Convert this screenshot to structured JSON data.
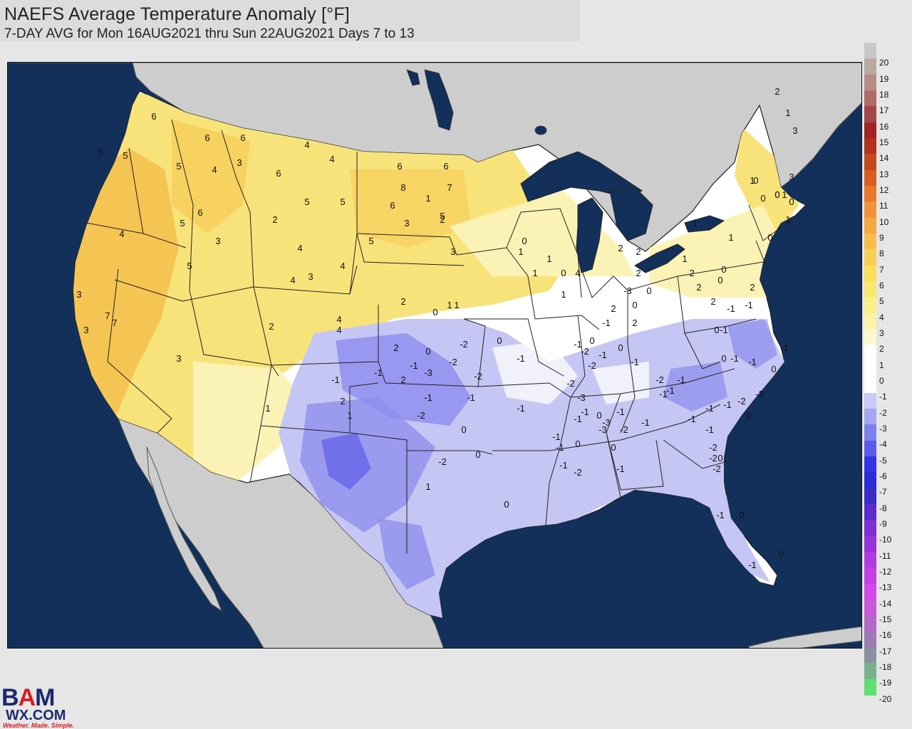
{
  "header": {
    "title": "NAEFS Average Temperature Anomaly [°F]",
    "subtitle": "7-DAY AVG for Mon 16AUG2021 thru Sun 22AUG2021 Days 7 to 13"
  },
  "legend": {
    "unit": "°F",
    "items": [
      {
        "label": "20",
        "color": "#c8c8c8"
      },
      {
        "label": "19",
        "color": "#b9a9a3"
      },
      {
        "label": "18",
        "color": "#b78c88"
      },
      {
        "label": "17",
        "color": "#ae6c69"
      },
      {
        "label": "16",
        "color": "#a4464a"
      },
      {
        "label": "15",
        "color": "#a32424"
      },
      {
        "label": "14",
        "color": "#b2331d"
      },
      {
        "label": "13",
        "color": "#c24a1f"
      },
      {
        "label": "12",
        "color": "#d75f23"
      },
      {
        "label": "11",
        "color": "#e9782c"
      },
      {
        "label": "10",
        "color": "#f1933a"
      },
      {
        "label": "9",
        "color": "#f4a745"
      },
      {
        "label": "8",
        "color": "#f6bd4e"
      },
      {
        "label": "7",
        "color": "#f7cf55"
      },
      {
        "label": "6",
        "color": "#f8df5e"
      },
      {
        "label": "5",
        "color": "#f8e86e"
      },
      {
        "label": "4",
        "color": "#f8ef86"
      },
      {
        "label": "3",
        "color": "#f9f4a9"
      },
      {
        "label": "2",
        "color": "#fbf8cd"
      },
      {
        "label": "1",
        "color": "#ffffff"
      },
      {
        "label": "0",
        "color": "#ffffff"
      },
      {
        "label": "-1",
        "color": "#ffffff"
      },
      {
        "label": "-2",
        "color": "#c9c9f6"
      },
      {
        "label": "-3",
        "color": "#a5a5f1"
      },
      {
        "label": "-4",
        "color": "#7f7fec"
      },
      {
        "label": "-5",
        "color": "#5b5be9"
      },
      {
        "label": "-6",
        "color": "#3434e6"
      },
      {
        "label": "-7",
        "color": "#2c2cd8"
      },
      {
        "label": "-8",
        "color": "#3a2cc9"
      },
      {
        "label": "-9",
        "color": "#5a2ccb"
      },
      {
        "label": "-10",
        "color": "#7d2fd2"
      },
      {
        "label": "-11",
        "color": "#9833d9"
      },
      {
        "label": "-12",
        "color": "#b13be0"
      },
      {
        "label": "-13",
        "color": "#c43fe4"
      },
      {
        "label": "-14",
        "color": "#d44ae9"
      },
      {
        "label": "-15",
        "color": "#c85ad9"
      },
      {
        "label": "-16",
        "color": "#b36ac6"
      },
      {
        "label": "-17",
        "color": "#9b7bb3"
      },
      {
        "label": "-18",
        "color": "#8b8fa2"
      },
      {
        "label": "-19",
        "color": "#78b090"
      },
      {
        "label": "-20",
        "color": "#5fe06e"
      }
    ]
  },
  "map": {
    "colors": {
      "ocean": "#12305a",
      "canada_land": "#cdcdcd",
      "mexico_land": "#cdcdcd",
      "lakes": "#12305a",
      "warm_strong": "#f4c04e",
      "warm": "#f8e37a",
      "warm_light": "#fbf2b5",
      "neutral": "#ffffff",
      "cool": "#c6c6f4",
      "cool_strong": "#8f8fee",
      "cool_deep": "#5e5ee8"
    },
    "labels": [
      {
        "t": "5"
      },
      {
        "t": "5"
      },
      {
        "t": "6"
      },
      {
        "t": "5"
      },
      {
        "t": "6"
      },
      {
        "t": "6"
      },
      {
        "t": "3"
      },
      {
        "t": "4"
      },
      {
        "t": "4"
      },
      {
        "t": "4"
      },
      {
        "t": "5"
      },
      {
        "t": "6"
      },
      {
        "t": "8"
      },
      {
        "t": "6"
      },
      {
        "t": "7"
      },
      {
        "t": "5"
      },
      {
        "t": "6"
      },
      {
        "t": "5"
      },
      {
        "t": "6"
      },
      {
        "t": "5"
      },
      {
        "t": "4"
      },
      {
        "t": "3"
      },
      {
        "t": "7"
      },
      {
        "t": "3"
      },
      {
        "t": "5"
      },
      {
        "t": "2"
      },
      {
        "t": "6"
      },
      {
        "t": "3"
      },
      {
        "t": "4"
      },
      {
        "t": "5"
      },
      {
        "t": "4"
      },
      {
        "t": "4"
      },
      {
        "t": "2"
      },
      {
        "t": "4"
      },
      {
        "t": "3"
      },
      {
        "t": "3"
      },
      {
        "t": "3"
      },
      {
        "t": "7"
      },
      {
        "t": "2"
      },
      {
        "t": "1"
      },
      {
        "t": "2"
      },
      {
        "t": "4"
      },
      {
        "t": "0"
      },
      {
        "t": "1"
      },
      {
        "t": "2"
      },
      {
        "t": "0"
      },
      {
        "t": "1"
      },
      {
        "t": "0"
      },
      {
        "t": "1"
      },
      {
        "t": "0"
      },
      {
        "t": "1"
      },
      {
        "t": "2"
      },
      {
        "t": "2"
      },
      {
        "t": "4"
      },
      {
        "t": "2"
      },
      {
        "t": "2"
      },
      {
        "t": "2"
      },
      {
        "t": "1"
      },
      {
        "t": "1"
      },
      {
        "t": "0"
      },
      {
        "t": "0"
      },
      {
        "t": "2"
      },
      {
        "t": "0"
      },
      {
        "t": "-1"
      },
      {
        "t": "0"
      },
      {
        "t": "-1"
      },
      {
        "t": "0"
      },
      {
        "t": "-1"
      },
      {
        "t": "-1"
      },
      {
        "t": "0"
      },
      {
        "t": "-2"
      },
      {
        "t": "-1"
      },
      {
        "t": "0"
      },
      {
        "t": "0"
      },
      {
        "t": "-2"
      },
      {
        "t": "-2"
      },
      {
        "t": "-1"
      },
      {
        "t": "-3"
      },
      {
        "t": "2"
      },
      {
        "t": "1"
      },
      {
        "t": "-1"
      },
      {
        "t": "0"
      },
      {
        "t": "-1"
      },
      {
        "t": "-1"
      },
      {
        "t": "0"
      },
      {
        "t": "-2"
      },
      {
        "t": "-1"
      },
      {
        "t": "-3"
      },
      {
        "t": "0"
      },
      {
        "t": "-1"
      },
      {
        "t": "-2"
      },
      {
        "t": "-1"
      },
      {
        "t": "-2"
      },
      {
        "t": "-1"
      },
      {
        "t": "-1"
      },
      {
        "t": "-1"
      },
      {
        "t": "-2"
      },
      {
        "t": "-1"
      },
      {
        "t": "0"
      },
      {
        "t": "-1"
      },
      {
        "t": "-3"
      },
      {
        "t": "0"
      },
      {
        "t": "-3"
      },
      {
        "t": "-1"
      },
      {
        "t": "-2"
      },
      {
        "t": "-1"
      },
      {
        "t": "-2"
      },
      {
        "t": "0"
      },
      {
        "t": "-1"
      },
      {
        "t": "-1"
      },
      {
        "t": "-1"
      },
      {
        "t": "-3"
      },
      {
        "t": "-1"
      },
      {
        "t": "-2"
      },
      {
        "t": "-2"
      },
      {
        "t": "-1"
      },
      {
        "t": "-1"
      },
      {
        "t": "-2"
      },
      {
        "t": "-2"
      },
      {
        "t": "0"
      },
      {
        "t": "-1"
      },
      {
        "t": "-1"
      },
      {
        "t": "-1"
      },
      {
        "t": "-1"
      },
      {
        "t": "0"
      },
      {
        "t": "-2"
      },
      {
        "t": "0"
      },
      {
        "t": "-2"
      },
      {
        "t": "-1"
      },
      {
        "t": "-2"
      },
      {
        "t": "0"
      },
      {
        "t": "-1"
      },
      {
        "t": "-1"
      },
      {
        "t": "0"
      },
      {
        "t": "0"
      },
      {
        "t": "1"
      },
      {
        "t": "0"
      },
      {
        "t": "1"
      },
      {
        "t": "-1"
      },
      {
        "t": "2"
      },
      {
        "t": "1"
      },
      {
        "t": "2"
      },
      {
        "t": "1"
      },
      {
        "t": "3"
      },
      {
        "t": "3"
      },
      {
        "t": "3"
      },
      {
        "t": "2"
      },
      {
        "t": "1"
      },
      {
        "t": "1"
      },
      {
        "t": "0"
      },
      {
        "t": "0"
      },
      {
        "t": "0"
      },
      {
        "t": "1"
      },
      {
        "t": "2"
      },
      {
        "t": "0"
      },
      {
        "t": "1"
      },
      {
        "t": "-1"
      },
      {
        "t": "2"
      },
      {
        "t": "1"
      },
      {
        "t": "0"
      }
    ]
  },
  "logo": {
    "name": "BAMWX.COM",
    "tagline": "Weather. Made. Simple."
  }
}
